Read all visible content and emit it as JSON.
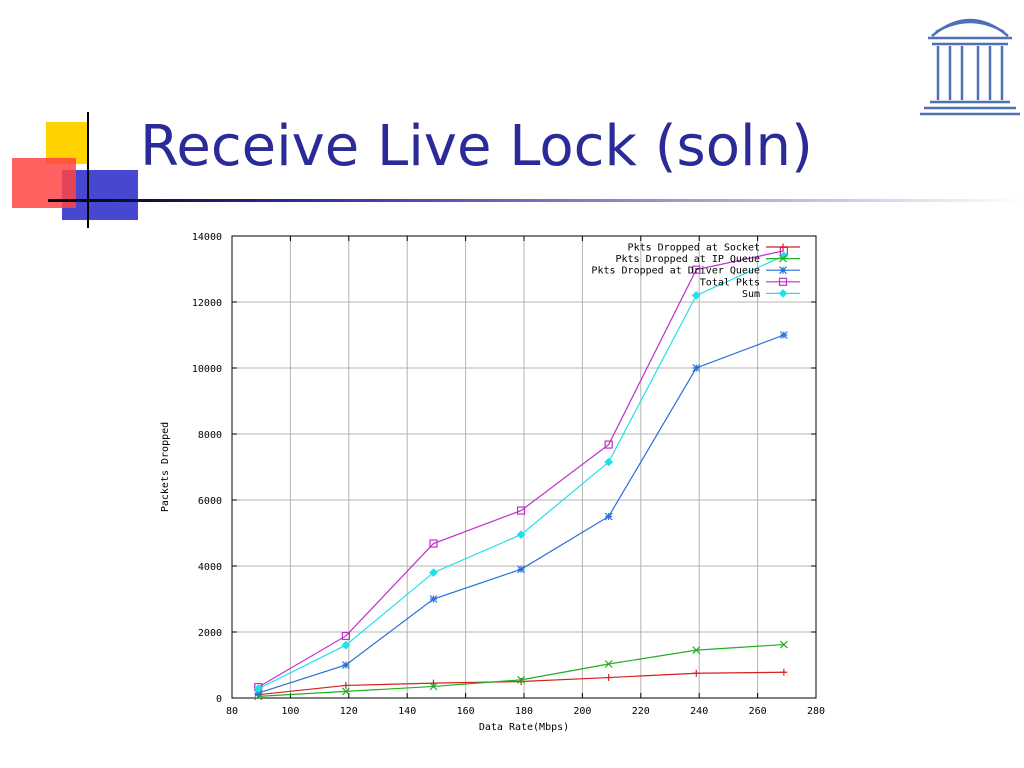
{
  "slide": {
    "title": "Receive Live Lock (soln)"
  },
  "colors": {
    "title": "#2a2a99",
    "deco_yellow": "#ffd200",
    "deco_red": "#ff4444",
    "deco_blue": "#3333cc",
    "rule": "#2a2a99",
    "logo": "#4f6fb6"
  },
  "icons": {
    "logo": "old-well-logo-icon",
    "decoration": "colored-squares-icon"
  },
  "chart_data": {
    "type": "line",
    "title": "",
    "xlabel": "Data Rate(Mbps)",
    "ylabel": "Packets Dropped",
    "xlim": [
      80,
      280
    ],
    "ylim": [
      0,
      14000
    ],
    "xticks": [
      80,
      100,
      120,
      140,
      160,
      180,
      200,
      220,
      240,
      260,
      280
    ],
    "yticks": [
      0,
      2000,
      4000,
      6000,
      8000,
      10000,
      12000,
      14000
    ],
    "grid": true,
    "legend_position": "top-right",
    "x": [
      89,
      119,
      149,
      179,
      209,
      239,
      269
    ],
    "series": [
      {
        "name": "Pkts Dropped at Socket",
        "color": "#d62020",
        "marker": "plus",
        "values": [
          100,
          380,
          450,
          500,
          620,
          750,
          780
        ]
      },
      {
        "name": "Pkts Dropped at IP Queue",
        "color": "#20b020",
        "marker": "cross",
        "values": [
          50,
          200,
          350,
          550,
          1030,
          1450,
          1620
        ]
      },
      {
        "name": "Pkts Dropped at Driver Queue",
        "color": "#2a6fd8",
        "marker": "star",
        "values": [
          150,
          1000,
          3000,
          3900,
          5500,
          10000,
          11000
        ]
      },
      {
        "name": "Total Pkts",
        "color": "#c030c8",
        "marker": "square",
        "values": [
          330,
          1880,
          4680,
          5680,
          7680,
          12980,
          13550
        ]
      },
      {
        "name": "Sum",
        "color": "#20e0e8",
        "marker": "diamond",
        "values": [
          280,
          1600,
          3800,
          4950,
          7150,
          12200,
          13400
        ]
      }
    ]
  }
}
